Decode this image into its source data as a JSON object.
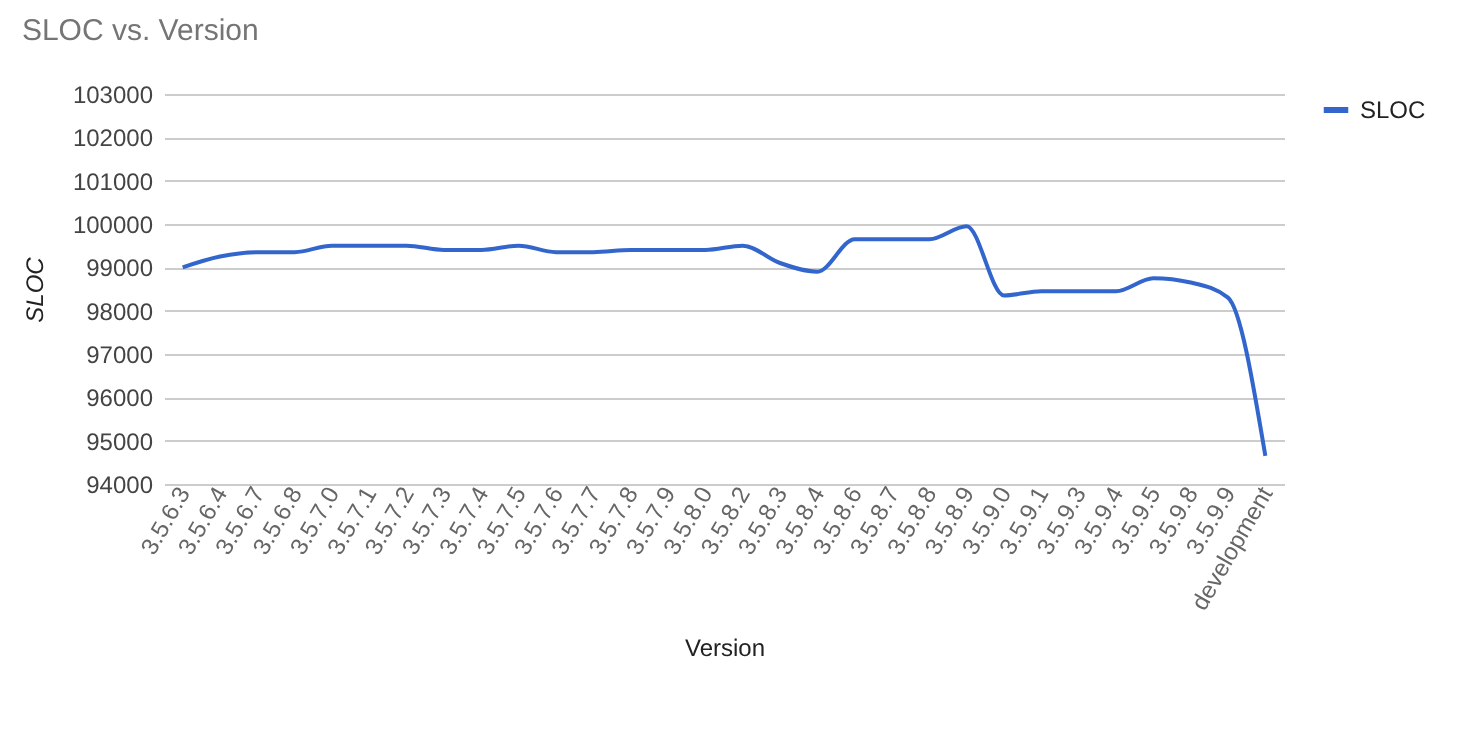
{
  "chart_data": {
    "type": "line",
    "title": "SLOC vs. Version",
    "xlabel": "Version",
    "ylabel": "SLOC",
    "categories": [
      "3.5.6.3",
      "3.5.6.4",
      "3.5.6.7",
      "3.5.6.8",
      "3.5.7.0",
      "3.5.7.1",
      "3.5.7.2",
      "3.5.7.3",
      "3.5.7.4",
      "3.5.7.5",
      "3.5.7.6",
      "3.5.7.7",
      "3.5.7.8",
      "3.5.7.9",
      "3.5.8.0",
      "3.5.8.2",
      "3.5.8.3",
      "3.5.8.4",
      "3.5.8.6",
      "3.5.8.7",
      "3.5.8.8",
      "3.5.8.9",
      "3.5.9.0",
      "3.5.9.1",
      "3.5.9.3",
      "3.5.9.4",
      "3.5.9.5",
      "3.5.9.8",
      "3.5.9.9",
      "development"
    ],
    "series": [
      {
        "name": "SLOC",
        "color": "#3366cc",
        "values": [
          99000,
          99250,
          99350,
          99350,
          99500,
          99500,
          99500,
          99400,
          99400,
          99500,
          99350,
          99350,
          99400,
          99400,
          99400,
          99500,
          99100,
          98900,
          99650,
          99650,
          99650,
          99950,
          98350,
          98450,
          98450,
          98450,
          98750,
          98650,
          98300,
          94650
        ]
      }
    ],
    "ylim": [
      94000,
      103000
    ],
    "yticks": [
      94000,
      95000,
      96000,
      97000,
      98000,
      99000,
      100000,
      101000,
      102000,
      103000
    ],
    "grid": "y",
    "legend": "top right",
    "marker": "none",
    "line_style": "solid"
  }
}
